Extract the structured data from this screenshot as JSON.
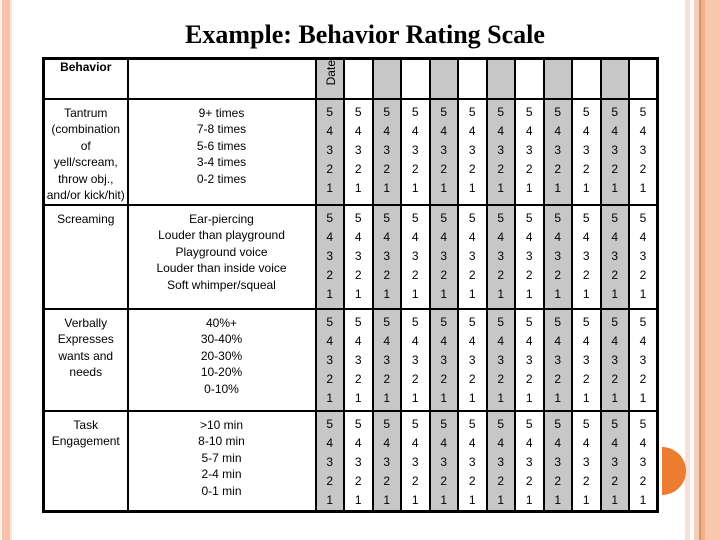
{
  "slide": {
    "title": "Example: Behavior Rating Scale"
  },
  "table": {
    "header": {
      "behavior_label": "Behavior",
      "criteria_label": "",
      "date_label": "Date"
    },
    "date_column_count": 12,
    "rating_scale": [
      "5",
      "4",
      "3",
      "2",
      "1"
    ],
    "rows": [
      {
        "behavior_lines": [
          "Tantrum",
          "(combination of",
          "yell/scream,",
          "throw obj.,",
          "and/or kick/hit)"
        ],
        "criteria_lines": [
          "9+ times",
          "7-8 times",
          "5-6 times",
          "3-4 times",
          "0-2 times"
        ]
      },
      {
        "behavior_lines": [
          "Screaming"
        ],
        "criteria_lines": [
          "Ear-piercing",
          "Louder than playground",
          "Playground voice",
          "Louder than inside voice",
          "Soft whimper/squeal"
        ]
      },
      {
        "behavior_lines": [
          "Verbally",
          "Expresses",
          "wants and",
          "needs"
        ],
        "criteria_lines": [
          "40%+",
          "30-40%",
          "20-30%",
          "10-20%",
          "0-10%"
        ]
      },
      {
        "behavior_lines": [
          "Task",
          "Engagement"
        ],
        "criteria_lines": [
          ">10 min",
          "8-10 min",
          "5-7 min",
          "2-4 min",
          "0-1 min"
        ]
      }
    ]
  },
  "theme": {
    "alt_column_fill": "#c7c7c7",
    "border_color": "#000000",
    "accent_circle_color": "#ec7c30",
    "stripe_salmon": "#f6c3aa",
    "stripe_dark_line": "#d89565",
    "stripe_light_pink": "#fbdfd2"
  }
}
